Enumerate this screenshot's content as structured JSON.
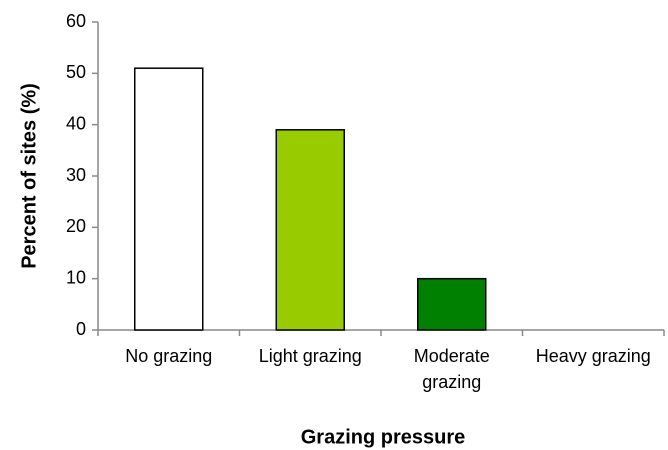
{
  "chart_data": {
    "type": "bar",
    "categories": [
      "No grazing",
      "Light grazing",
      "Moderate grazing",
      "Heavy grazing"
    ],
    "values": [
      51,
      39,
      10,
      0
    ],
    "colors": [
      "#ffffff",
      "#99cc00",
      "#008000",
      "#ffffff"
    ],
    "ylim": [
      0,
      60
    ],
    "yticks": [
      0,
      10,
      20,
      30,
      40,
      50,
      60
    ],
    "xlabel": "Grazing pressure",
    "ylabel": "Percent of sites (%)",
    "grid": false
  }
}
